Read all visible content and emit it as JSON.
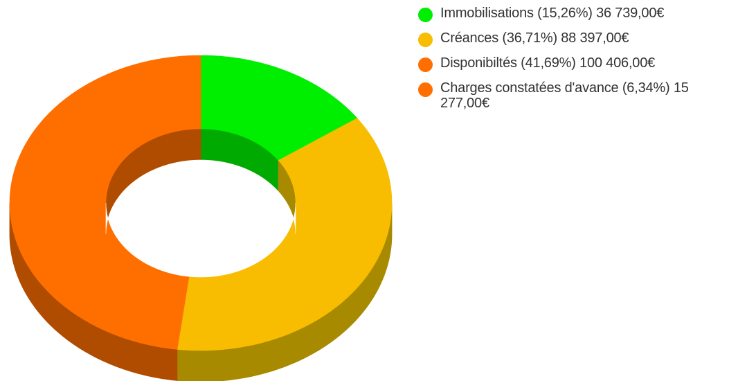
{
  "chart_data": {
    "type": "pie",
    "variant": "donut-3d",
    "legend_position": "right",
    "slices": [
      {
        "label": "Immobilisations (15,26%) 36 739,00€",
        "category": "Immobilisations",
        "percent": 15.26,
        "value": 36739.0,
        "color": "#00ee00",
        "side_color": "#00aa00"
      },
      {
        "label": "Créances (36,71%) 88 397,00€",
        "category": "Créances",
        "percent": 36.71,
        "value": 88397.0,
        "color": "#f8bc00",
        "side_color": "#a88a00"
      },
      {
        "label": "Disponibiltés (41,69%) 100 406,00€",
        "category": "Disponibiltés",
        "percent": 41.69,
        "value": 100406.0,
        "color": "#ff6f00",
        "side_color": "#b04c00"
      },
      {
        "label": "Charges constatées d'avance (6,34%) 15 277,00€",
        "category": "Charges constatées d'avance",
        "percent": 6.34,
        "value": 15277.0,
        "color": "#ff6f00",
        "side_color": "#b04c00"
      }
    ]
  }
}
